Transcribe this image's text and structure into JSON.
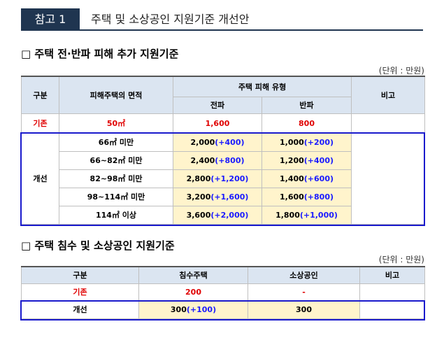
{
  "header": {
    "badge": "참고 1",
    "title": "주택 및 소상공인 지원기준 개선안"
  },
  "section1": {
    "title": "□ 주택 전·반파 피해 추가 지원기준",
    "unit": "(단위 : 만원)",
    "headers": {
      "category": "구분",
      "area": "피해주택의 면적",
      "damage_type": "주택 피해 유형",
      "full": "전파",
      "half": "반파",
      "note": "비고"
    },
    "existing": {
      "label": "기존",
      "area": "50㎡",
      "full": "1,600",
      "half": "800"
    },
    "improved_label": "개선",
    "rows": [
      {
        "area": "66㎡ 미만",
        "full": "2,000",
        "full_add": "(+400)",
        "half": "1,000",
        "half_add": "(+200)"
      },
      {
        "area": "66~82㎡ 미만",
        "full": "2,400",
        "full_add": "(+800)",
        "half": "1,200",
        "half_add": "(+400)"
      },
      {
        "area": "82~98㎡ 미만",
        "full": "2,800",
        "full_add": "(+1,200)",
        "half": "1,400",
        "half_add": "(+600)"
      },
      {
        "area": "98~114㎡ 미만",
        "full": "3,200",
        "full_add": "(+1,600)",
        "half": "1,600",
        "half_add": "(+800)"
      },
      {
        "area": "114㎡ 이상",
        "full": "3,600",
        "full_add": "(+2,000)",
        "half": "1,800",
        "half_add": "(+1,000)"
      }
    ]
  },
  "section2": {
    "title": "□ 주택 침수 및 소상공인 지원기준",
    "unit": "(단위 : 만원)",
    "headers": {
      "category": "구분",
      "flood": "침수주택",
      "small_biz": "소상공인",
      "note": "비고"
    },
    "existing": {
      "label": "기존",
      "flood": "200",
      "small_biz": "-"
    },
    "improved": {
      "label": "개선",
      "flood": "300",
      "flood_add": "(+100)",
      "small_biz": "300"
    }
  }
}
